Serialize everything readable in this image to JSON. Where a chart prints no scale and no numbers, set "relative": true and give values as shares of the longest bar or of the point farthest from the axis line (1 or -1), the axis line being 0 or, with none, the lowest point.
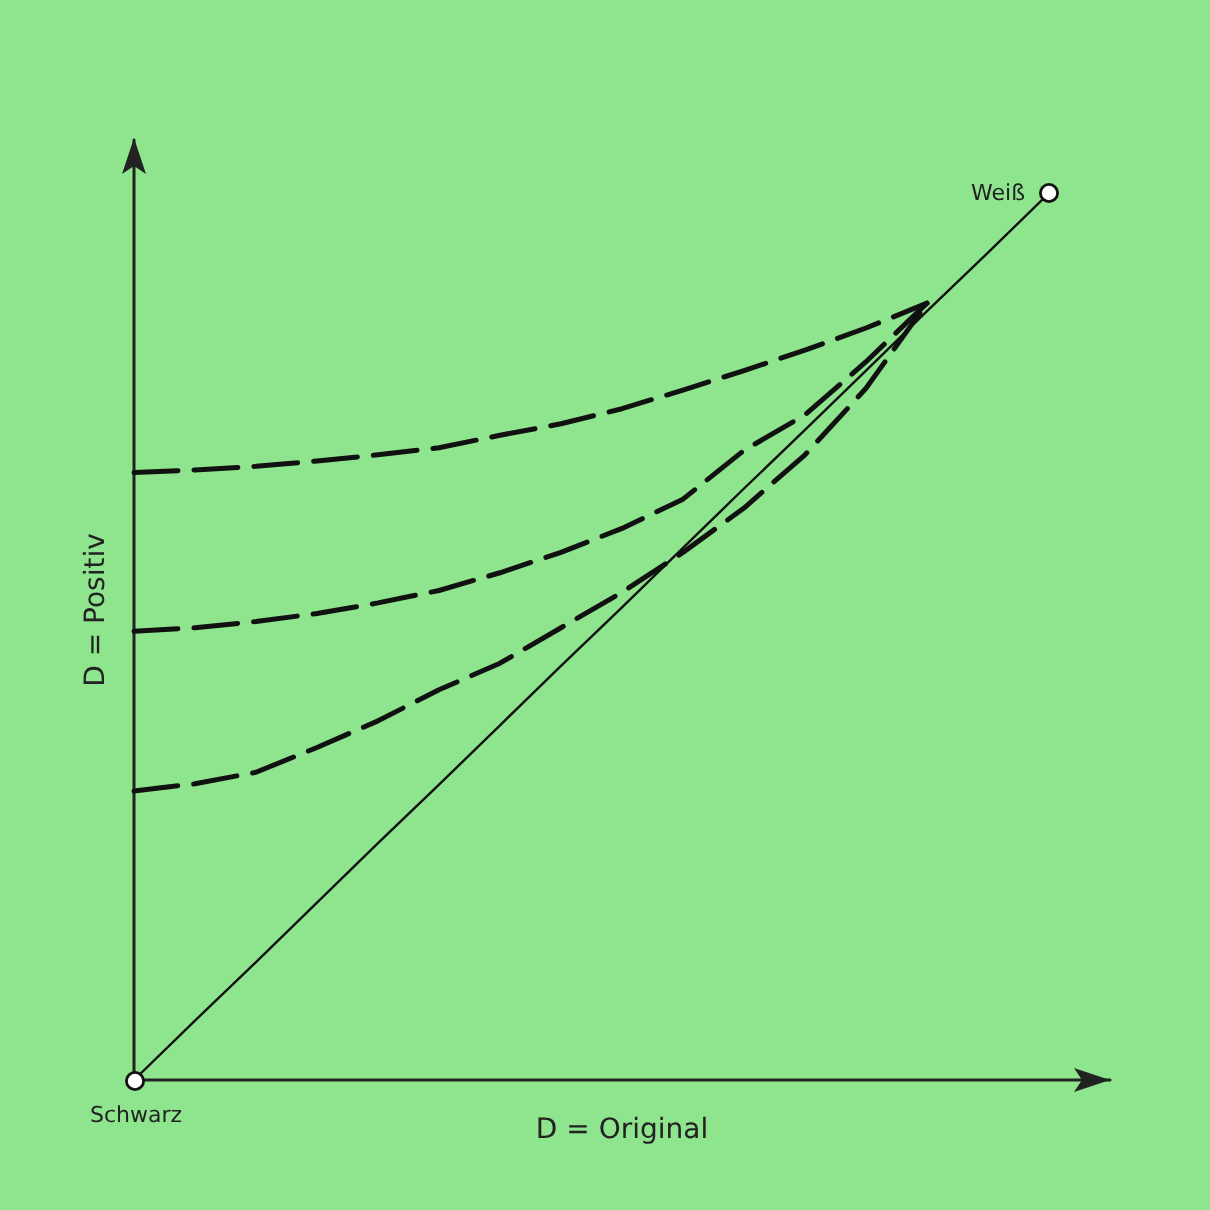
{
  "chart_data": {
    "type": "line",
    "relative": true,
    "xlabel": "D = Original",
    "ylabel": "D = Positiv",
    "categories": [
      null,
      null,
      null,
      null,
      null,
      null,
      null,
      null,
      null,
      null,
      null,
      null,
      null,
      null,
      null,
      null,
      null
    ],
    "series": [
      {
        "color": "#111111",
        "values": [
          0,
          0.067,
          0.133,
          0.2,
          0.267,
          0.333,
          0.4,
          0.467,
          0.533,
          0.6,
          0.667,
          0.733,
          0.8,
          0.867,
          0.933,
          1,
          null
        ],
        "marker": "none",
        "line_style": "solid"
      },
      {
        "color": "#111111",
        "values": [
          0.685,
          0.688,
          0.692,
          0.698,
          0.705,
          0.713,
          0.727,
          0.74,
          0.757,
          0.778,
          0.8,
          0.823,
          0.848,
          0.876,
          null,
          null,
          null
        ],
        "marker": "none",
        "line_style": "dashed"
      },
      {
        "color": "#111111",
        "values": [
          0.506,
          0.51,
          0.517,
          0.526,
          0.538,
          0.552,
          0.572,
          0.595,
          0.622,
          0.655,
          0.71,
          0.75,
          0.81,
          0.876,
          null,
          null,
          null
        ],
        "marker": "none",
        "line_style": "dashed"
      },
      {
        "color": "#111111",
        "values": [
          0.326,
          0.334,
          0.347,
          0.375,
          0.405,
          0.44,
          0.47,
          0.51,
          0.55,
          0.595,
          0.645,
          0.705,
          0.78,
          0.876,
          null,
          null,
          null
        ],
        "marker": "none",
        "line_style": "dashed"
      }
    ],
    "annotations": [
      "Schwarz",
      "Weiß"
    ]
  }
}
